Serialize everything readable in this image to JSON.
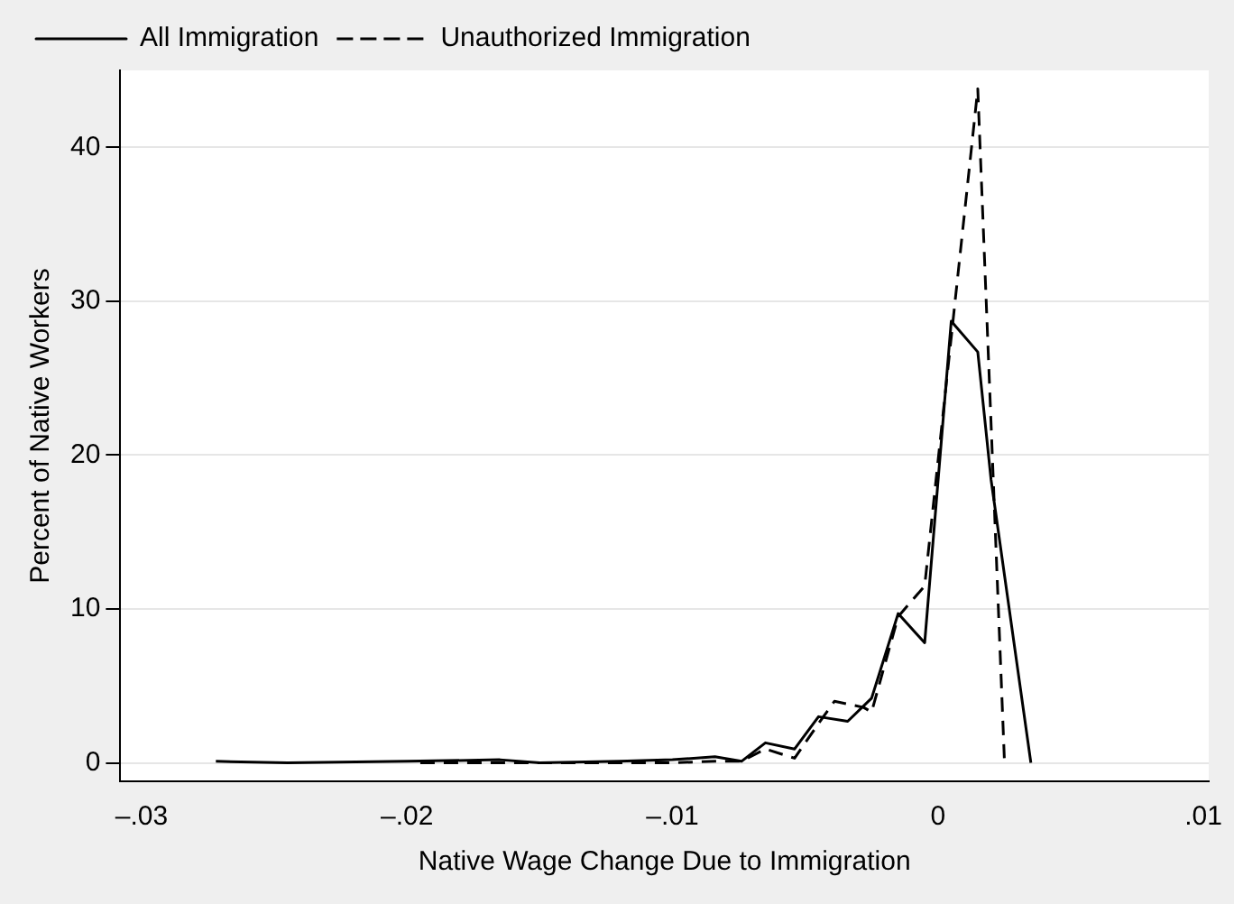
{
  "chart_data": {
    "type": "line",
    "xlabel": "Native Wage Change Due to Immigration",
    "ylabel": "Percent of Native Workers",
    "xlim": [
      -0.0308,
      0.0102
    ],
    "xticks": [
      {
        "value": -0.03,
        "label": "–.03"
      },
      {
        "value": -0.02,
        "label": "–.02"
      },
      {
        "value": -0.01,
        "label": "–.01"
      },
      0,
      {
        "value": 0.01,
        "label": ".01"
      }
    ],
    "ylim": [
      -1.2,
      45
    ],
    "yticks": [
      0,
      10,
      20,
      30,
      40
    ],
    "grid": "y",
    "legend": "top left",
    "marker": "none",
    "series": [
      {
        "name": "All Immigration",
        "color": "#000000",
        "line_style": "solid",
        "x": [
          -0.0272,
          -0.0245,
          -0.02,
          -0.0165,
          -0.015,
          -0.012,
          -0.01,
          -0.0084,
          -0.0074,
          -0.0065,
          -0.0054,
          -0.0045,
          -0.0034,
          -0.0025,
          -0.0015,
          -0.0005,
          0.0005,
          0.0015,
          0.002,
          0.0035
        ],
        "values": [
          0.1,
          0,
          0.1,
          0.2,
          0,
          0.1,
          0.2,
          0.4,
          0.1,
          1.3,
          0.9,
          3,
          2.7,
          4.2,
          9.7,
          7.8,
          28.7,
          26.7,
          18.4,
          0
        ]
      },
      {
        "name": "Unauthorized Immigration",
        "color": "#000000",
        "line_style": "dashed",
        "x": [
          -0.0195,
          -0.015,
          -0.01,
          -0.0084,
          -0.0074,
          -0.0065,
          -0.0054,
          -0.0044,
          -0.0039,
          -0.0028,
          -0.0025,
          -0.0015,
          -0.0005,
          0.0015,
          0.0025
        ],
        "values": [
          0,
          0,
          0,
          0.1,
          0.1,
          0.9,
          0.3,
          2.8,
          4,
          3.6,
          3.3,
          9.5,
          11.5,
          43.8,
          0.3
        ]
      }
    ]
  }
}
